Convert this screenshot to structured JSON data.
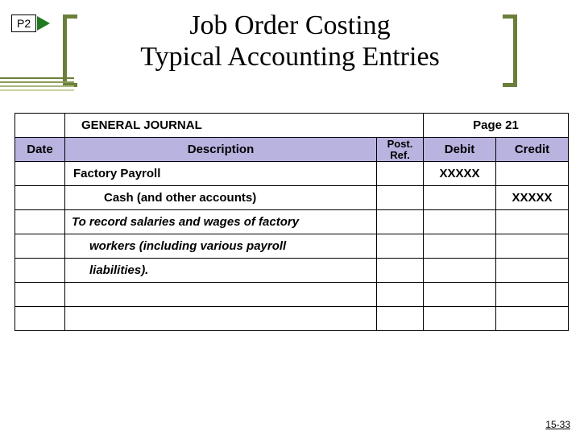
{
  "badge": "P2",
  "title_line1": "Job Order Costing",
  "title_line2": "Typical Accounting Entries",
  "accent_colors": [
    "#6b7f3a",
    "#8a9b57",
    "#a9b77a",
    "#c8d1a0"
  ],
  "journal": {
    "heading_label": "GENERAL JOURNAL",
    "page_label": "Page 21",
    "columns": {
      "date": "Date",
      "description": "Description",
      "post_ref_l1": "Post.",
      "post_ref_l2": "Ref.",
      "debit": "Debit",
      "credit": "Credit"
    },
    "rows": [
      {
        "desc": "Factory Payroll",
        "desc_class": "entry-bold",
        "debit": "XXXXX",
        "credit": ""
      },
      {
        "desc": "Cash (and other accounts)",
        "desc_class": "entry-indent",
        "debit": "",
        "credit": "XXXXX"
      },
      {
        "desc": "To record salaries and wages of factory",
        "desc_class": "entry-note",
        "debit": "",
        "credit": ""
      },
      {
        "desc": "workers (including various payroll",
        "desc_class": "entry-note-indent",
        "debit": "",
        "credit": ""
      },
      {
        "desc": "liabilities).",
        "desc_class": "entry-note-indent",
        "debit": "",
        "credit": ""
      },
      {
        "desc": "",
        "desc_class": "",
        "debit": "",
        "credit": ""
      },
      {
        "desc": "",
        "desc_class": "",
        "debit": "",
        "credit": ""
      }
    ]
  },
  "header_bg": "#b9b3e0",
  "slide_number": "15-33"
}
